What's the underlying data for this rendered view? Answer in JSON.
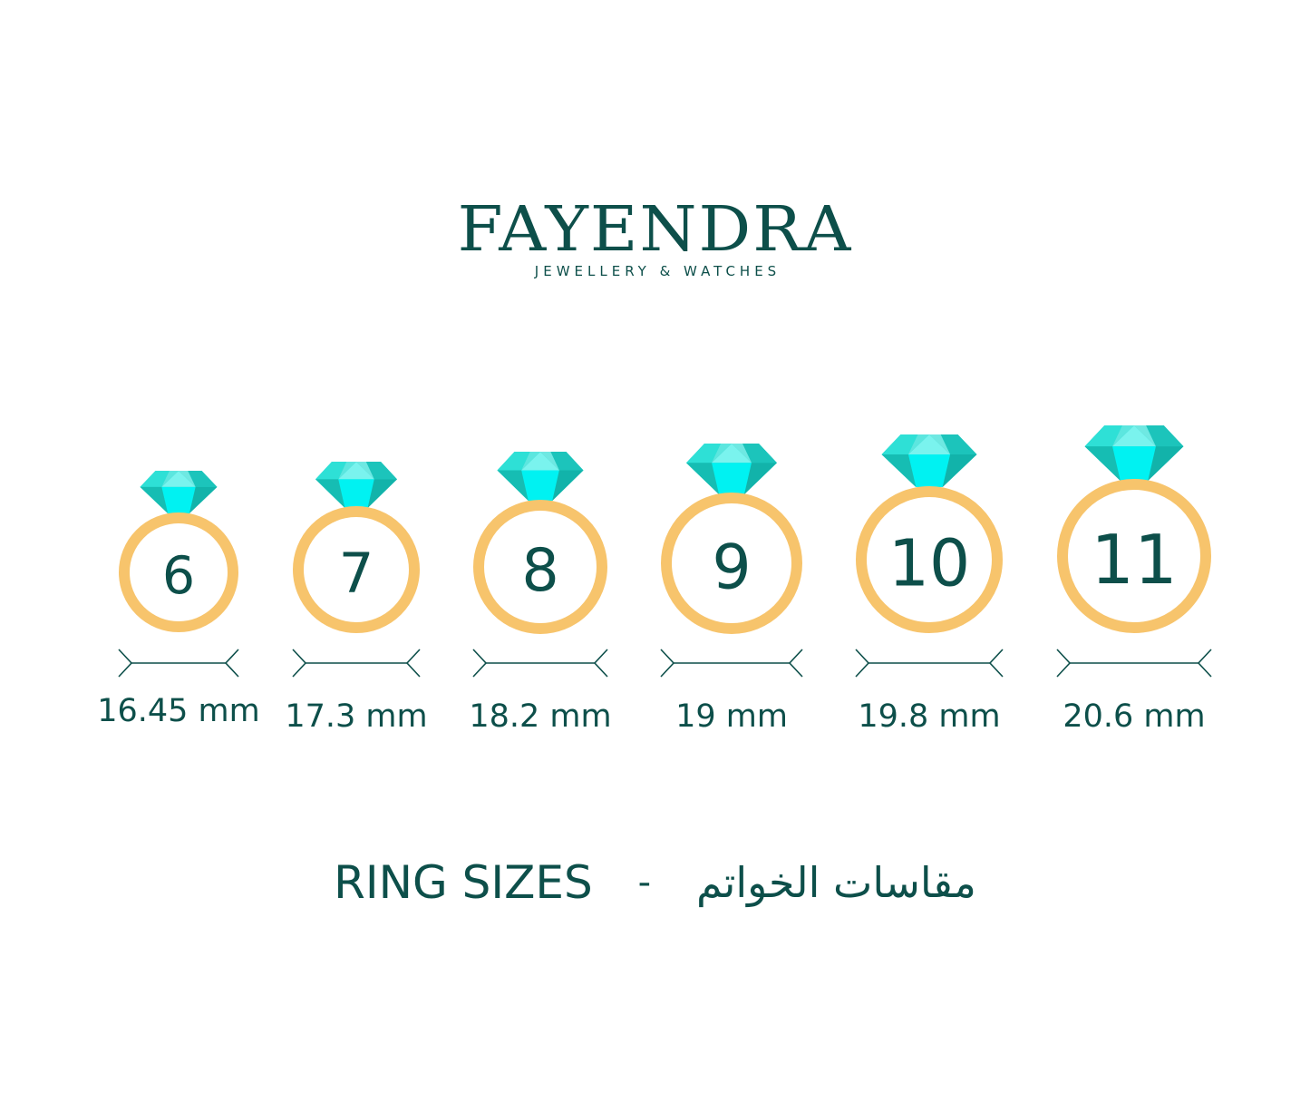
{
  "brand": {
    "name": "FAYENDRA",
    "tagline": "JEWELLERY & WATCHES"
  },
  "rings": [
    {
      "size": "6",
      "diameter": "16.45 mm"
    },
    {
      "size": "7",
      "diameter": "17.3 mm"
    },
    {
      "size": "8",
      "diameter": "18.2 mm"
    },
    {
      "size": "9",
      "diameter": "19 mm"
    },
    {
      "size": "10",
      "diameter": "19.8 mm"
    },
    {
      "size": "11",
      "diameter": "20.6 mm"
    }
  ],
  "footer": {
    "title_en": "RING SIZES",
    "separator": "-",
    "title_ar": "مقاسات الخواتم"
  },
  "colors": {
    "text": "#0d4f4a",
    "ring": "#f7c46c",
    "gem": "#1fd1c7",
    "gem_light": "#00f2f2"
  }
}
